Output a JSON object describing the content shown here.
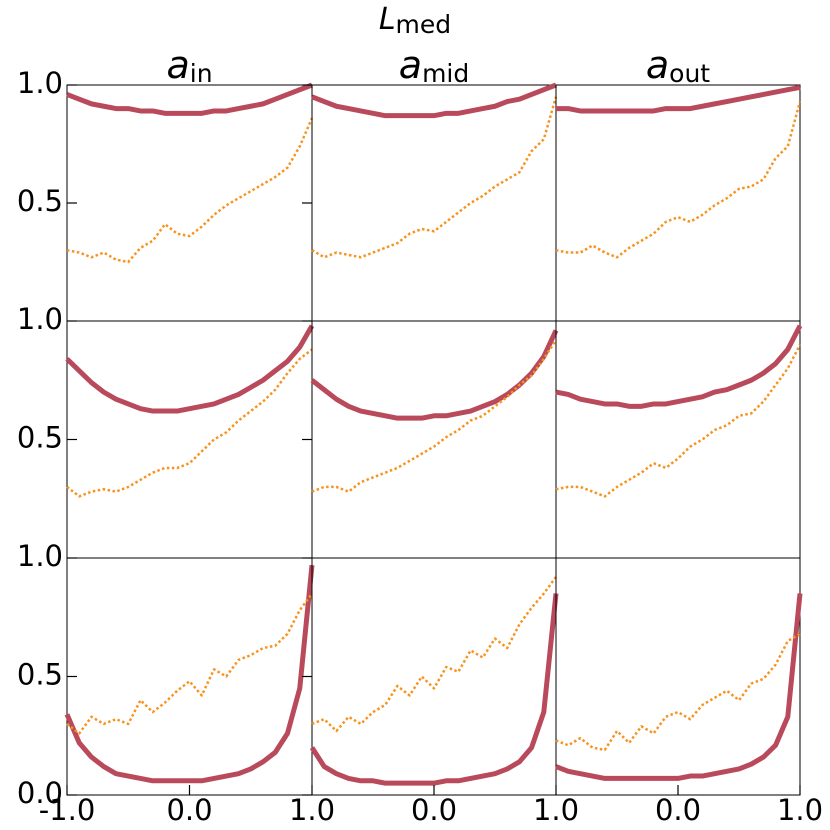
{
  "suptitle": {
    "main": "L",
    "sub": "med"
  },
  "chart_data": [
    {
      "type": "line",
      "title": {
        "main": "a",
        "sub": "in"
      },
      "x": [
        -1,
        -0.9,
        -0.8,
        -0.7,
        -0.6,
        -0.5,
        -0.4,
        -0.3,
        -0.2,
        -0.1,
        0,
        0.1,
        0.2,
        0.3,
        0.4,
        0.5,
        0.6,
        0.7,
        0.8,
        0.9,
        1
      ],
      "series": [
        {
          "color": "#b94a5c",
          "style": "solid",
          "values": [
            0.96,
            0.94,
            0.92,
            0.91,
            0.9,
            0.9,
            0.89,
            0.89,
            0.88,
            0.88,
            0.88,
            0.88,
            0.89,
            0.89,
            0.9,
            0.91,
            0.92,
            0.94,
            0.96,
            0.98,
            1.0
          ]
        },
        {
          "color": "#f7931e",
          "style": "dotted",
          "values": [
            0.3,
            0.29,
            0.27,
            0.29,
            0.26,
            0.25,
            0.31,
            0.34,
            0.41,
            0.37,
            0.36,
            0.4,
            0.45,
            0.49,
            0.52,
            0.55,
            0.58,
            0.61,
            0.65,
            0.74,
            0.86
          ]
        }
      ],
      "xlim": [
        -1,
        1
      ],
      "ylim": [
        0,
        1
      ],
      "yticks": [
        0.5,
        {
          "value": 1,
          "label": "1.0"
        }
      ]
    },
    {
      "type": "line",
      "title": {
        "main": "a",
        "sub": "mid"
      },
      "x": [
        -1,
        -0.9,
        -0.8,
        -0.7,
        -0.6,
        -0.5,
        -0.4,
        -0.3,
        -0.2,
        -0.1,
        0,
        0.1,
        0.2,
        0.3,
        0.4,
        0.5,
        0.6,
        0.7,
        0.8,
        0.9,
        1
      ],
      "series": [
        {
          "color": "#b94a5c",
          "style": "solid",
          "values": [
            0.95,
            0.93,
            0.91,
            0.9,
            0.89,
            0.88,
            0.87,
            0.87,
            0.87,
            0.87,
            0.87,
            0.88,
            0.88,
            0.89,
            0.9,
            0.91,
            0.93,
            0.94,
            0.96,
            0.98,
            1.0
          ]
        },
        {
          "color": "#f7931e",
          "style": "dotted",
          "values": [
            0.3,
            0.27,
            0.29,
            0.28,
            0.27,
            0.29,
            0.31,
            0.33,
            0.37,
            0.39,
            0.38,
            0.42,
            0.46,
            0.5,
            0.53,
            0.57,
            0.6,
            0.63,
            0.72,
            0.77,
            0.95
          ]
        }
      ],
      "xlim": [
        -1,
        1
      ],
      "ylim": [
        0,
        1
      ]
    },
    {
      "type": "line",
      "title": {
        "main": "a",
        "sub": "out"
      },
      "x": [
        -1,
        -0.9,
        -0.8,
        -0.7,
        -0.6,
        -0.5,
        -0.4,
        -0.3,
        -0.2,
        -0.1,
        0,
        0.1,
        0.2,
        0.3,
        0.4,
        0.5,
        0.6,
        0.7,
        0.8,
        0.9,
        1
      ],
      "series": [
        {
          "color": "#b94a5c",
          "style": "solid",
          "values": [
            0.9,
            0.9,
            0.89,
            0.89,
            0.89,
            0.89,
            0.89,
            0.89,
            0.89,
            0.9,
            0.9,
            0.9,
            0.91,
            0.92,
            0.93,
            0.94,
            0.95,
            0.96,
            0.97,
            0.98,
            0.99
          ]
        },
        {
          "color": "#f7931e",
          "style": "dotted",
          "values": [
            0.3,
            0.29,
            0.29,
            0.32,
            0.29,
            0.27,
            0.31,
            0.34,
            0.37,
            0.42,
            0.44,
            0.42,
            0.45,
            0.49,
            0.52,
            0.56,
            0.57,
            0.6,
            0.69,
            0.74,
            0.93
          ]
        }
      ],
      "xlim": [
        -1,
        1
      ],
      "ylim": [
        0,
        1
      ]
    },
    {
      "type": "line",
      "x": [
        -1,
        -0.9,
        -0.8,
        -0.7,
        -0.6,
        -0.5,
        -0.4,
        -0.3,
        -0.2,
        -0.1,
        0,
        0.1,
        0.2,
        0.3,
        0.4,
        0.5,
        0.6,
        0.7,
        0.8,
        0.9,
        1
      ],
      "series": [
        {
          "color": "#b94a5c",
          "style": "solid",
          "values": [
            0.84,
            0.79,
            0.74,
            0.7,
            0.67,
            0.65,
            0.63,
            0.62,
            0.62,
            0.62,
            0.63,
            0.64,
            0.65,
            0.67,
            0.69,
            0.72,
            0.75,
            0.79,
            0.83,
            0.89,
            0.98
          ]
        },
        {
          "color": "#f7931e",
          "style": "dotted",
          "values": [
            0.3,
            0.26,
            0.28,
            0.29,
            0.28,
            0.3,
            0.33,
            0.36,
            0.38,
            0.38,
            0.4,
            0.45,
            0.5,
            0.53,
            0.58,
            0.62,
            0.66,
            0.71,
            0.78,
            0.84,
            0.88
          ]
        }
      ],
      "xlim": [
        -1,
        1
      ],
      "ylim": [
        0,
        1
      ],
      "yticks": [
        0.5,
        {
          "value": 1,
          "label": "1.0"
        }
      ]
    },
    {
      "type": "line",
      "x": [
        -1,
        -0.9,
        -0.8,
        -0.7,
        -0.6,
        -0.5,
        -0.4,
        -0.3,
        -0.2,
        -0.1,
        0,
        0.1,
        0.2,
        0.3,
        0.4,
        0.5,
        0.6,
        0.7,
        0.8,
        0.9,
        1
      ],
      "series": [
        {
          "color": "#b94a5c",
          "style": "solid",
          "values": [
            0.75,
            0.71,
            0.67,
            0.64,
            0.62,
            0.61,
            0.6,
            0.59,
            0.59,
            0.59,
            0.6,
            0.6,
            0.61,
            0.62,
            0.64,
            0.66,
            0.69,
            0.73,
            0.78,
            0.85,
            0.96
          ]
        },
        {
          "color": "#f7931e",
          "style": "dotted",
          "values": [
            0.28,
            0.3,
            0.3,
            0.28,
            0.32,
            0.34,
            0.36,
            0.38,
            0.41,
            0.44,
            0.47,
            0.51,
            0.54,
            0.58,
            0.6,
            0.64,
            0.68,
            0.73,
            0.77,
            0.84,
            0.92
          ]
        }
      ],
      "xlim": [
        -1,
        1
      ],
      "ylim": [
        0,
        1
      ]
    },
    {
      "type": "line",
      "x": [
        -1,
        -0.9,
        -0.8,
        -0.7,
        -0.6,
        -0.5,
        -0.4,
        -0.3,
        -0.2,
        -0.1,
        0,
        0.1,
        0.2,
        0.3,
        0.4,
        0.5,
        0.6,
        0.7,
        0.8,
        0.9,
        1
      ],
      "series": [
        {
          "color": "#b94a5c",
          "style": "solid",
          "values": [
            0.7,
            0.69,
            0.67,
            0.66,
            0.65,
            0.65,
            0.64,
            0.64,
            0.65,
            0.65,
            0.66,
            0.67,
            0.68,
            0.7,
            0.71,
            0.73,
            0.75,
            0.78,
            0.82,
            0.88,
            0.98
          ]
        },
        {
          "color": "#f7931e",
          "style": "dotted",
          "values": [
            0.29,
            0.3,
            0.3,
            0.28,
            0.26,
            0.3,
            0.33,
            0.36,
            0.4,
            0.38,
            0.42,
            0.47,
            0.5,
            0.54,
            0.56,
            0.6,
            0.61,
            0.66,
            0.73,
            0.8,
            0.9
          ]
        }
      ],
      "xlim": [
        -1,
        1
      ],
      "ylim": [
        0,
        1
      ]
    },
    {
      "type": "line",
      "x": [
        -1,
        -0.9,
        -0.8,
        -0.7,
        -0.6,
        -0.5,
        -0.4,
        -0.3,
        -0.2,
        -0.1,
        0,
        0.1,
        0.2,
        0.3,
        0.4,
        0.5,
        0.6,
        0.7,
        0.8,
        0.9,
        1
      ],
      "series": [
        {
          "color": "#b94a5c",
          "style": "solid",
          "values": [
            0.34,
            0.22,
            0.16,
            0.12,
            0.09,
            0.08,
            0.07,
            0.06,
            0.06,
            0.06,
            0.06,
            0.06,
            0.07,
            0.08,
            0.09,
            0.11,
            0.14,
            0.18,
            0.26,
            0.45,
            0.97
          ]
        },
        {
          "color": "#f7931e",
          "style": "dotted",
          "values": [
            0.3,
            0.26,
            0.33,
            0.3,
            0.32,
            0.3,
            0.4,
            0.35,
            0.39,
            0.44,
            0.48,
            0.42,
            0.53,
            0.5,
            0.57,
            0.59,
            0.62,
            0.63,
            0.68,
            0.78,
            0.85
          ]
        }
      ],
      "xlim": [
        -1,
        1
      ],
      "ylim": [
        0,
        1
      ],
      "yticks": [
        {
          "value": 0,
          "label": "0.0"
        },
        0.5,
        {
          "value": 1,
          "label": "1.0"
        }
      ],
      "xticks": [
        {
          "value": -1,
          "label": "-1.0"
        },
        {
          "value": 0,
          "label": "0.0"
        },
        {
          "value": 1,
          "label": "1.0"
        }
      ]
    },
    {
      "type": "line",
      "x": [
        -1,
        -0.9,
        -0.8,
        -0.7,
        -0.6,
        -0.5,
        -0.4,
        -0.3,
        -0.2,
        -0.1,
        0,
        0.1,
        0.2,
        0.3,
        0.4,
        0.5,
        0.6,
        0.7,
        0.8,
        0.9,
        1
      ],
      "series": [
        {
          "color": "#b94a5c",
          "style": "solid",
          "values": [
            0.2,
            0.12,
            0.09,
            0.07,
            0.06,
            0.06,
            0.05,
            0.05,
            0.05,
            0.05,
            0.05,
            0.06,
            0.06,
            0.07,
            0.08,
            0.09,
            0.11,
            0.14,
            0.2,
            0.35,
            0.85
          ]
        },
        {
          "color": "#f7931e",
          "style": "dotted",
          "values": [
            0.3,
            0.32,
            0.27,
            0.33,
            0.3,
            0.35,
            0.38,
            0.46,
            0.42,
            0.5,
            0.45,
            0.54,
            0.52,
            0.61,
            0.58,
            0.66,
            0.62,
            0.72,
            0.79,
            0.85,
            0.92
          ]
        }
      ],
      "xlim": [
        -1,
        1
      ],
      "ylim": [
        0,
        1
      ],
      "xticks": [
        {
          "value": 0,
          "label": "0.0"
        },
        {
          "value": 1,
          "label": "1.0"
        }
      ]
    },
    {
      "type": "line",
      "x": [
        -1,
        -0.9,
        -0.8,
        -0.7,
        -0.6,
        -0.5,
        -0.4,
        -0.3,
        -0.2,
        -0.1,
        0,
        0.1,
        0.2,
        0.3,
        0.4,
        0.5,
        0.6,
        0.7,
        0.8,
        0.9,
        1
      ],
      "series": [
        {
          "color": "#b94a5c",
          "style": "solid",
          "values": [
            0.12,
            0.1,
            0.09,
            0.08,
            0.07,
            0.07,
            0.07,
            0.07,
            0.07,
            0.07,
            0.07,
            0.08,
            0.08,
            0.09,
            0.1,
            0.11,
            0.13,
            0.16,
            0.21,
            0.33,
            0.85
          ]
        },
        {
          "color": "#f7931e",
          "style": "dotted",
          "values": [
            0.23,
            0.21,
            0.24,
            0.2,
            0.19,
            0.27,
            0.22,
            0.29,
            0.26,
            0.33,
            0.35,
            0.32,
            0.38,
            0.41,
            0.44,
            0.4,
            0.47,
            0.49,
            0.55,
            0.65,
            0.68
          ]
        }
      ],
      "xlim": [
        -1,
        1
      ],
      "ylim": [
        0,
        1
      ],
      "xticks": [
        {
          "value": 0,
          "label": "0.0"
        },
        {
          "value": 1,
          "label": "1.0"
        }
      ]
    }
  ]
}
